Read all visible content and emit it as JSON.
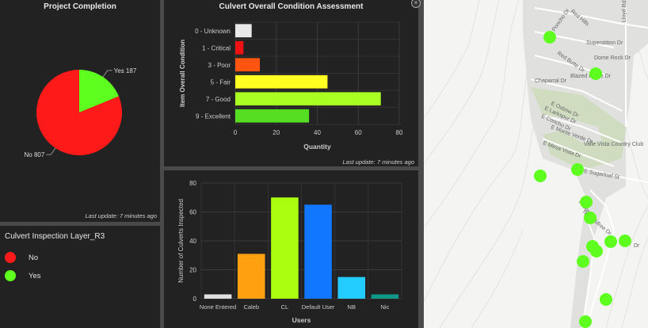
{
  "project_completion": {
    "title": "Project Completion",
    "last_update": "Last update: 7 minutes ago",
    "chart_data": {
      "type": "pie",
      "slices": [
        {
          "name": "Yes",
          "value": 187,
          "label": "Yes 187",
          "color": "#5eff1f"
        },
        {
          "name": "No",
          "value": 807,
          "label": "No 807",
          "color": "#ff1a1a"
        }
      ]
    }
  },
  "legend_panel": {
    "title": "Culvert Inspection Layer_R3",
    "items": [
      {
        "label": "No",
        "color": "#ff1a1a"
      },
      {
        "label": "Yes",
        "color": "#5eff1f"
      }
    ]
  },
  "condition_chart": {
    "title": "Culvert Overall Condition Assessment",
    "last_update": "Last update: 7 minutes ago",
    "chart_data": {
      "type": "bar",
      "orientation": "horizontal",
      "categories": [
        "0 - Unknown",
        "1 - Critical",
        "3 - Poor",
        "5 - Fair",
        "7 - Good",
        "9 - Excellent"
      ],
      "values": [
        8,
        4,
        12,
        45,
        71,
        36
      ],
      "colors": [
        "#e8e8e8",
        "#ee1111",
        "#ff5511",
        "#ffff22",
        "#aaff22",
        "#55dd22"
      ],
      "xlabel": "Quantity",
      "ylabel": "Item Overall Condition",
      "xlim": [
        0,
        80
      ],
      "xticks": [
        "0",
        "20",
        "40",
        "60",
        "80"
      ],
      "grid": true
    }
  },
  "inspections_chart": {
    "chart_data": {
      "type": "bar",
      "categories": [
        "None Entered",
        "Caleb",
        "CL",
        "Default User",
        "NB",
        "Nic"
      ],
      "values": [
        3,
        31,
        70,
        65,
        15,
        3
      ],
      "colors": [
        "#e0e0e0",
        "#ffa010",
        "#aaff11",
        "#1177ff",
        "#22ccff",
        "#119988"
      ],
      "xlabel": "Users",
      "ylabel": "Number of Culverts Inspected",
      "ylim": [
        0,
        80
      ],
      "yticks": [
        "0",
        "20",
        "40",
        "60",
        "80"
      ],
      "grid": true
    }
  },
  "map": {
    "point_color": "#5eff1f",
    "street_labels": [
      "Lloyd Rd",
      "Poncho Dr",
      "Red Hills",
      "Superstition Dr",
      "Dome Rock Dr",
      "Red Butte Dr",
      "Blazed Ridge Dr",
      "Chaparral Dr",
      "E Oxbow Dr",
      "E Larkspur Dr",
      "E Concho Dr",
      "E Monte Verde Dr",
      "E Mesa Vista Dr",
      "Valle Vista Country Club",
      "E Sugarloaf St",
      "N Crest Dr",
      "N Stroufree Dr",
      "Dr"
    ]
  },
  "window": {
    "close_icon": "close-icon"
  }
}
